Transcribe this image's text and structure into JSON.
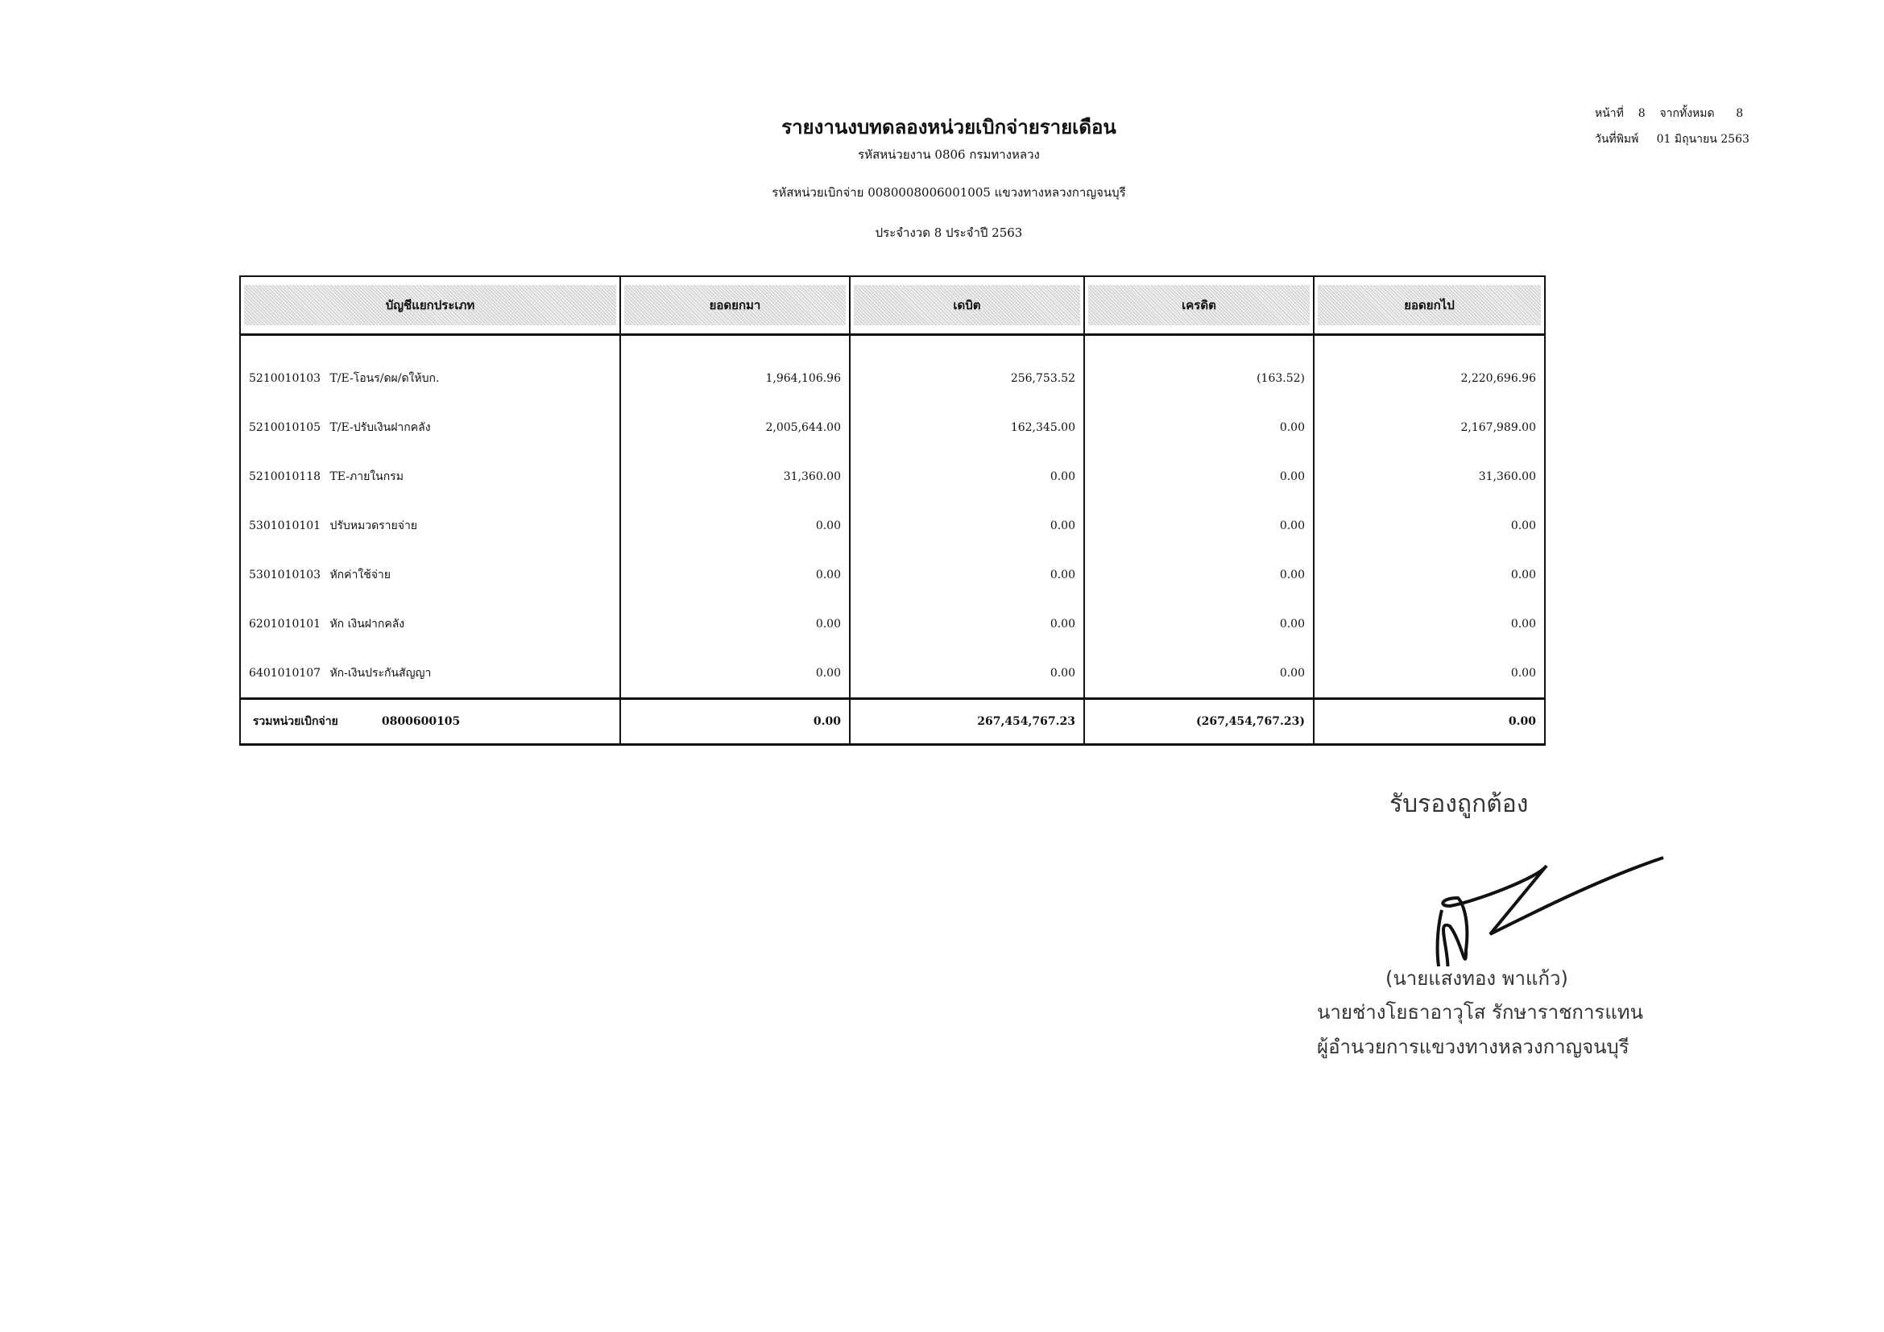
{
  "header": {
    "title": "รายงานงบทดลองหน่วยเบิกจ่ายรายเดือน",
    "agency_line": "รหัสหน่วยงาน 0806 กรมทางหลวง",
    "disbursing_unit_line": "รหัสหน่วยเบิกจ่าย 0080008006001005 แขวงทางหลวงกาญจนบุรี",
    "period_line": "ประจำงวด 8 ประจำปี 2563"
  },
  "page_info": {
    "page_label": "หน้าที่",
    "page_number": "8",
    "of_label": "จากทั้งหมด",
    "total_pages": "8",
    "print_date_label": "วันที่พิมพ์",
    "print_date": "01 มิถุนายน 2563"
  },
  "table": {
    "columns": [
      "บัญชีแยกประเภท",
      "ยอดยกมา",
      "เดบิต",
      "เครดิต",
      "ยอดยกไป"
    ],
    "rows": [
      {
        "code": "5210010103",
        "name": "T/E-โอนร/ดผ/ดให้บก.",
        "brought_forward": "1,964,106.96",
        "debit": "256,753.52",
        "credit": "(163.52)",
        "carried_forward": "2,220,696.96"
      },
      {
        "code": "5210010105",
        "name": "T/E-ปรับเงินฝากคลัง",
        "brought_forward": "2,005,644.00",
        "debit": "162,345.00",
        "credit": "0.00",
        "carried_forward": "2,167,989.00"
      },
      {
        "code": "5210010118",
        "name": "TE-ภายในกรม",
        "brought_forward": "31,360.00",
        "debit": "0.00",
        "credit": "0.00",
        "carried_forward": "31,360.00"
      },
      {
        "code": "5301010101",
        "name": "ปรับหมวดรายจ่าย",
        "brought_forward": "0.00",
        "debit": "0.00",
        "credit": "0.00",
        "carried_forward": "0.00"
      },
      {
        "code": "5301010103",
        "name": "หักค่าใช้จ่าย",
        "brought_forward": "0.00",
        "debit": "0.00",
        "credit": "0.00",
        "carried_forward": "0.00"
      },
      {
        "code": "6201010101",
        "name": "หัก เงินฝากคลัง",
        "brought_forward": "0.00",
        "debit": "0.00",
        "credit": "0.00",
        "carried_forward": "0.00"
      },
      {
        "code": "6401010107",
        "name": "หัก-เงินประกันสัญญา",
        "brought_forward": "0.00",
        "debit": "0.00",
        "credit": "0.00",
        "carried_forward": "0.00"
      }
    ],
    "total": {
      "label": "รวมหน่วยเบิกจ่าย",
      "code": "0800600105",
      "brought_forward": "0.00",
      "debit": "267,454,767.23",
      "credit": "(267,454,767.23)",
      "carried_forward": "0.00"
    }
  },
  "certification": {
    "stamp": "รับรองถูกต้อง",
    "name": "(นายแสงทอง  พาแก้ว)",
    "position_line1": "นายช่างโยธาอาวุโส รักษาราชการแทน",
    "position_line2": "ผู้อำนวยการแขวงทางหลวงกาญจนบุรี"
  }
}
